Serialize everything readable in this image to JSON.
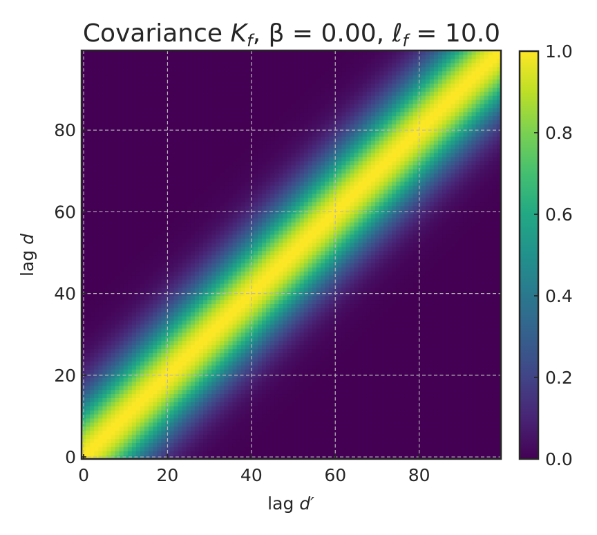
{
  "chart_data": {
    "type": "heatmap",
    "title": "Covariance K_f, β = 0.00, ℓ_f = 10.0",
    "title_parts": {
      "prefix": "Covariance ",
      "k": "K",
      "k_sub": "f",
      "beta_part": ", β = 0.00, ",
      "ell": "ℓ",
      "ell_sub": "f",
      "ell_value": " = 10.0"
    },
    "xlabel": "lag d′",
    "ylabel": "lag d",
    "xlabel_parts": {
      "prefix": "lag ",
      "var": "d′"
    },
    "ylabel_parts": {
      "prefix": "lag ",
      "var": "d"
    },
    "n": 100,
    "xlim": [
      0,
      99
    ],
    "ylim": [
      0,
      99
    ],
    "x_ticks": [
      0,
      20,
      40,
      60,
      80
    ],
    "y_ticks": [
      0,
      20,
      40,
      60,
      80
    ],
    "kernel": {
      "form": "exp(-(d - d')^2 / (2 * l^2))",
      "length_scale": 10.0,
      "beta": 0.0
    },
    "colormap": "viridis",
    "colorbar": {
      "range": [
        0.0,
        1.0
      ],
      "ticks": [
        "0.0",
        "0.2",
        "0.4",
        "0.6",
        "0.8",
        "1.0"
      ]
    },
    "grid": true,
    "origin": "lower"
  }
}
